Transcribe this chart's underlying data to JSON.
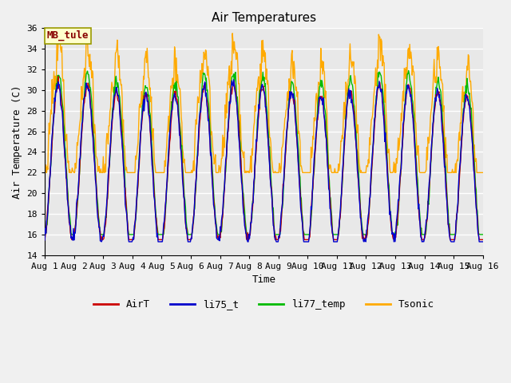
{
  "title": "Air Temperatures",
  "xlabel": "Time",
  "ylabel": "Air Temperature (C)",
  "ylim": [
    14,
    36
  ],
  "yticks": [
    14,
    16,
    18,
    20,
    22,
    24,
    26,
    28,
    30,
    32,
    34,
    36
  ],
  "xtick_labels": [
    "Aug 1",
    "Aug 2",
    "Aug 3",
    "Aug 4",
    "Aug 5",
    "Aug 6",
    "Aug 7",
    "Aug 8",
    "Aug 9",
    "Aug 10",
    "Aug 11",
    "Aug 12",
    "Aug 13",
    "Aug 14",
    "Aug 15",
    "Aug 16"
  ],
  "colors": {
    "AirT": "#cc0000",
    "li75_t": "#0000cc",
    "li77_temp": "#00bb00",
    "Tsonic": "#ffaa00"
  },
  "annotation_text": "MB_tule",
  "annotation_color": "#880000",
  "annotation_bg": "#ffffcc",
  "annotation_border": "#999900",
  "plot_bg": "#e8e8e8",
  "fig_bg": "#f0f0f0",
  "grid_color": "#ffffff",
  "title_fontsize": 11,
  "label_fontsize": 9,
  "tick_fontsize": 8,
  "legend_fontsize": 9,
  "line_width": 1.0
}
